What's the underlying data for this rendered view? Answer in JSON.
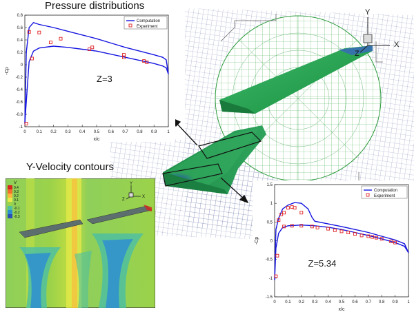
{
  "headings": {
    "pressure": "Pressure distributions",
    "velocity": "Y-Velocity contours"
  },
  "axes_labels": {
    "y_axis": "Y",
    "x_axis": "X",
    "z_axis": "Z"
  },
  "velocity_legend": {
    "title": "V",
    "levels": [
      "0.4",
      "0.3",
      "0.2",
      "0.1",
      "0",
      "-0.1",
      "-0.2",
      "-0.3"
    ],
    "colors": [
      "#d7261e",
      "#f46d2d",
      "#fdb53c",
      "#e6e94a",
      "#9bd24a",
      "#4fc0a0",
      "#2e8fd0",
      "#2a4fb5"
    ]
  },
  "chart_data": [
    {
      "type": "line",
      "label": "Z=3",
      "xlabel": "x/c",
      "ylabel": "-Cp",
      "xlim": [
        0,
        1
      ],
      "ylim": [
        -1,
        0.8
      ],
      "xticks": [
        "0",
        "0.1",
        "0.2",
        "0.3",
        "0.4",
        "0.5",
        "0.6",
        "0.7",
        "0.8",
        "0.9",
        "1"
      ],
      "yticks": [
        "0.8",
        "0.6",
        "0.4",
        "0.2",
        "0",
        "-0.2",
        "-0.4",
        "-0.6",
        "-0.8",
        "-1"
      ],
      "legend": {
        "computation": "Computation",
        "experiment": "Experiment"
      },
      "computation_upper": [
        [
          0,
          -0.95
        ],
        [
          0.01,
          0.2
        ],
        [
          0.03,
          0.6
        ],
        [
          0.06,
          0.68
        ],
        [
          0.1,
          0.65
        ],
        [
          0.2,
          0.6
        ],
        [
          0.3,
          0.54
        ],
        [
          0.4,
          0.48
        ],
        [
          0.5,
          0.42
        ],
        [
          0.6,
          0.35
        ],
        [
          0.7,
          0.28
        ],
        [
          0.8,
          0.22
        ],
        [
          0.9,
          0.16
        ],
        [
          0.96,
          0.12
        ],
        [
          0.985,
          0.08
        ],
        [
          1,
          -0.15
        ]
      ],
      "computation_lower": [
        [
          0,
          -0.95
        ],
        [
          0.01,
          -0.6
        ],
        [
          0.03,
          0.05
        ],
        [
          0.06,
          0.22
        ],
        [
          0.1,
          0.27
        ],
        [
          0.2,
          0.3
        ],
        [
          0.3,
          0.28
        ],
        [
          0.4,
          0.25
        ],
        [
          0.5,
          0.22
        ],
        [
          0.6,
          0.17
        ],
        [
          0.7,
          0.12
        ],
        [
          0.8,
          0.07
        ],
        [
          0.9,
          0.02
        ],
        [
          0.96,
          -0.02
        ],
        [
          0.985,
          -0.05
        ],
        [
          1,
          -0.15
        ]
      ],
      "experiment": [
        [
          0.01,
          -0.95
        ],
        [
          0.03,
          0.53
        ],
        [
          0.05,
          0.1
        ],
        [
          0.1,
          0.52
        ],
        [
          0.18,
          0.36
        ],
        [
          0.25,
          0.42
        ],
        [
          0.45,
          0.25
        ],
        [
          0.47,
          0.28
        ],
        [
          0.69,
          0.16
        ],
        [
          0.69,
          0.12
        ],
        [
          0.83,
          0.06
        ],
        [
          0.85,
          0.04
        ]
      ]
    },
    {
      "type": "line",
      "label": "Z=5.34",
      "xlabel": "x/c",
      "ylabel": "-Cp",
      "xlim": [
        0,
        1
      ],
      "ylim": [
        -1.5,
        1.5
      ],
      "xticks": [
        "0",
        "0.1",
        "0.2",
        "0.3",
        "0.4",
        "0.5",
        "0.6",
        "0.7",
        "0.8",
        "0.9",
        "1"
      ],
      "yticks": [
        "1.5",
        "1",
        "0.5",
        "0",
        "-0.5",
        "-1",
        "-1.5"
      ],
      "legend": {
        "computation": "Computation",
        "experiment": "Experiment"
      },
      "computation_upper": [
        [
          0,
          -1.05
        ],
        [
          0.01,
          0.3
        ],
        [
          0.03,
          0.6
        ],
        [
          0.06,
          0.85
        ],
        [
          0.1,
          0.95
        ],
        [
          0.15,
          1.02
        ],
        [
          0.2,
          1.0
        ],
        [
          0.25,
          0.85
        ],
        [
          0.28,
          0.62
        ],
        [
          0.3,
          0.52
        ],
        [
          0.4,
          0.45
        ],
        [
          0.5,
          0.38
        ],
        [
          0.6,
          0.3
        ],
        [
          0.7,
          0.22
        ],
        [
          0.8,
          0.12
        ],
        [
          0.9,
          0.02
        ],
        [
          0.97,
          -0.08
        ],
        [
          1,
          -0.32
        ]
      ],
      "computation_lower": [
        [
          0,
          -1.05
        ],
        [
          0.01,
          -0.2
        ],
        [
          0.03,
          0.2
        ],
        [
          0.06,
          0.35
        ],
        [
          0.1,
          0.4
        ],
        [
          0.2,
          0.42
        ],
        [
          0.3,
          0.4
        ],
        [
          0.4,
          0.36
        ],
        [
          0.5,
          0.3
        ],
        [
          0.6,
          0.22
        ],
        [
          0.7,
          0.14
        ],
        [
          0.8,
          0.05
        ],
        [
          0.9,
          -0.05
        ],
        [
          0.97,
          -0.15
        ],
        [
          1,
          -0.32
        ]
      ],
      "experiment": [
        [
          0.01,
          -0.95
        ],
        [
          0.02,
          -0.4
        ],
        [
          0.03,
          0.55
        ],
        [
          0.05,
          0.7
        ],
        [
          0.07,
          0.75
        ],
        [
          0.1,
          0.88
        ],
        [
          0.13,
          0.9
        ],
        [
          0.15,
          0.88
        ],
        [
          0.2,
          0.75
        ],
        [
          0.07,
          0.38
        ],
        [
          0.13,
          0.4
        ],
        [
          0.2,
          0.4
        ],
        [
          0.28,
          0.38
        ],
        [
          0.32,
          0.35
        ],
        [
          0.4,
          0.32
        ],
        [
          0.45,
          0.28
        ],
        [
          0.5,
          0.25
        ],
        [
          0.55,
          0.22
        ],
        [
          0.6,
          0.18
        ],
        [
          0.65,
          0.14
        ],
        [
          0.7,
          0.12
        ],
        [
          0.73,
          0.1
        ],
        [
          0.76,
          0.08
        ],
        [
          0.8,
          0.05
        ],
        [
          0.87,
          -0.02
        ],
        [
          0.9,
          -0.05
        ]
      ]
    }
  ]
}
